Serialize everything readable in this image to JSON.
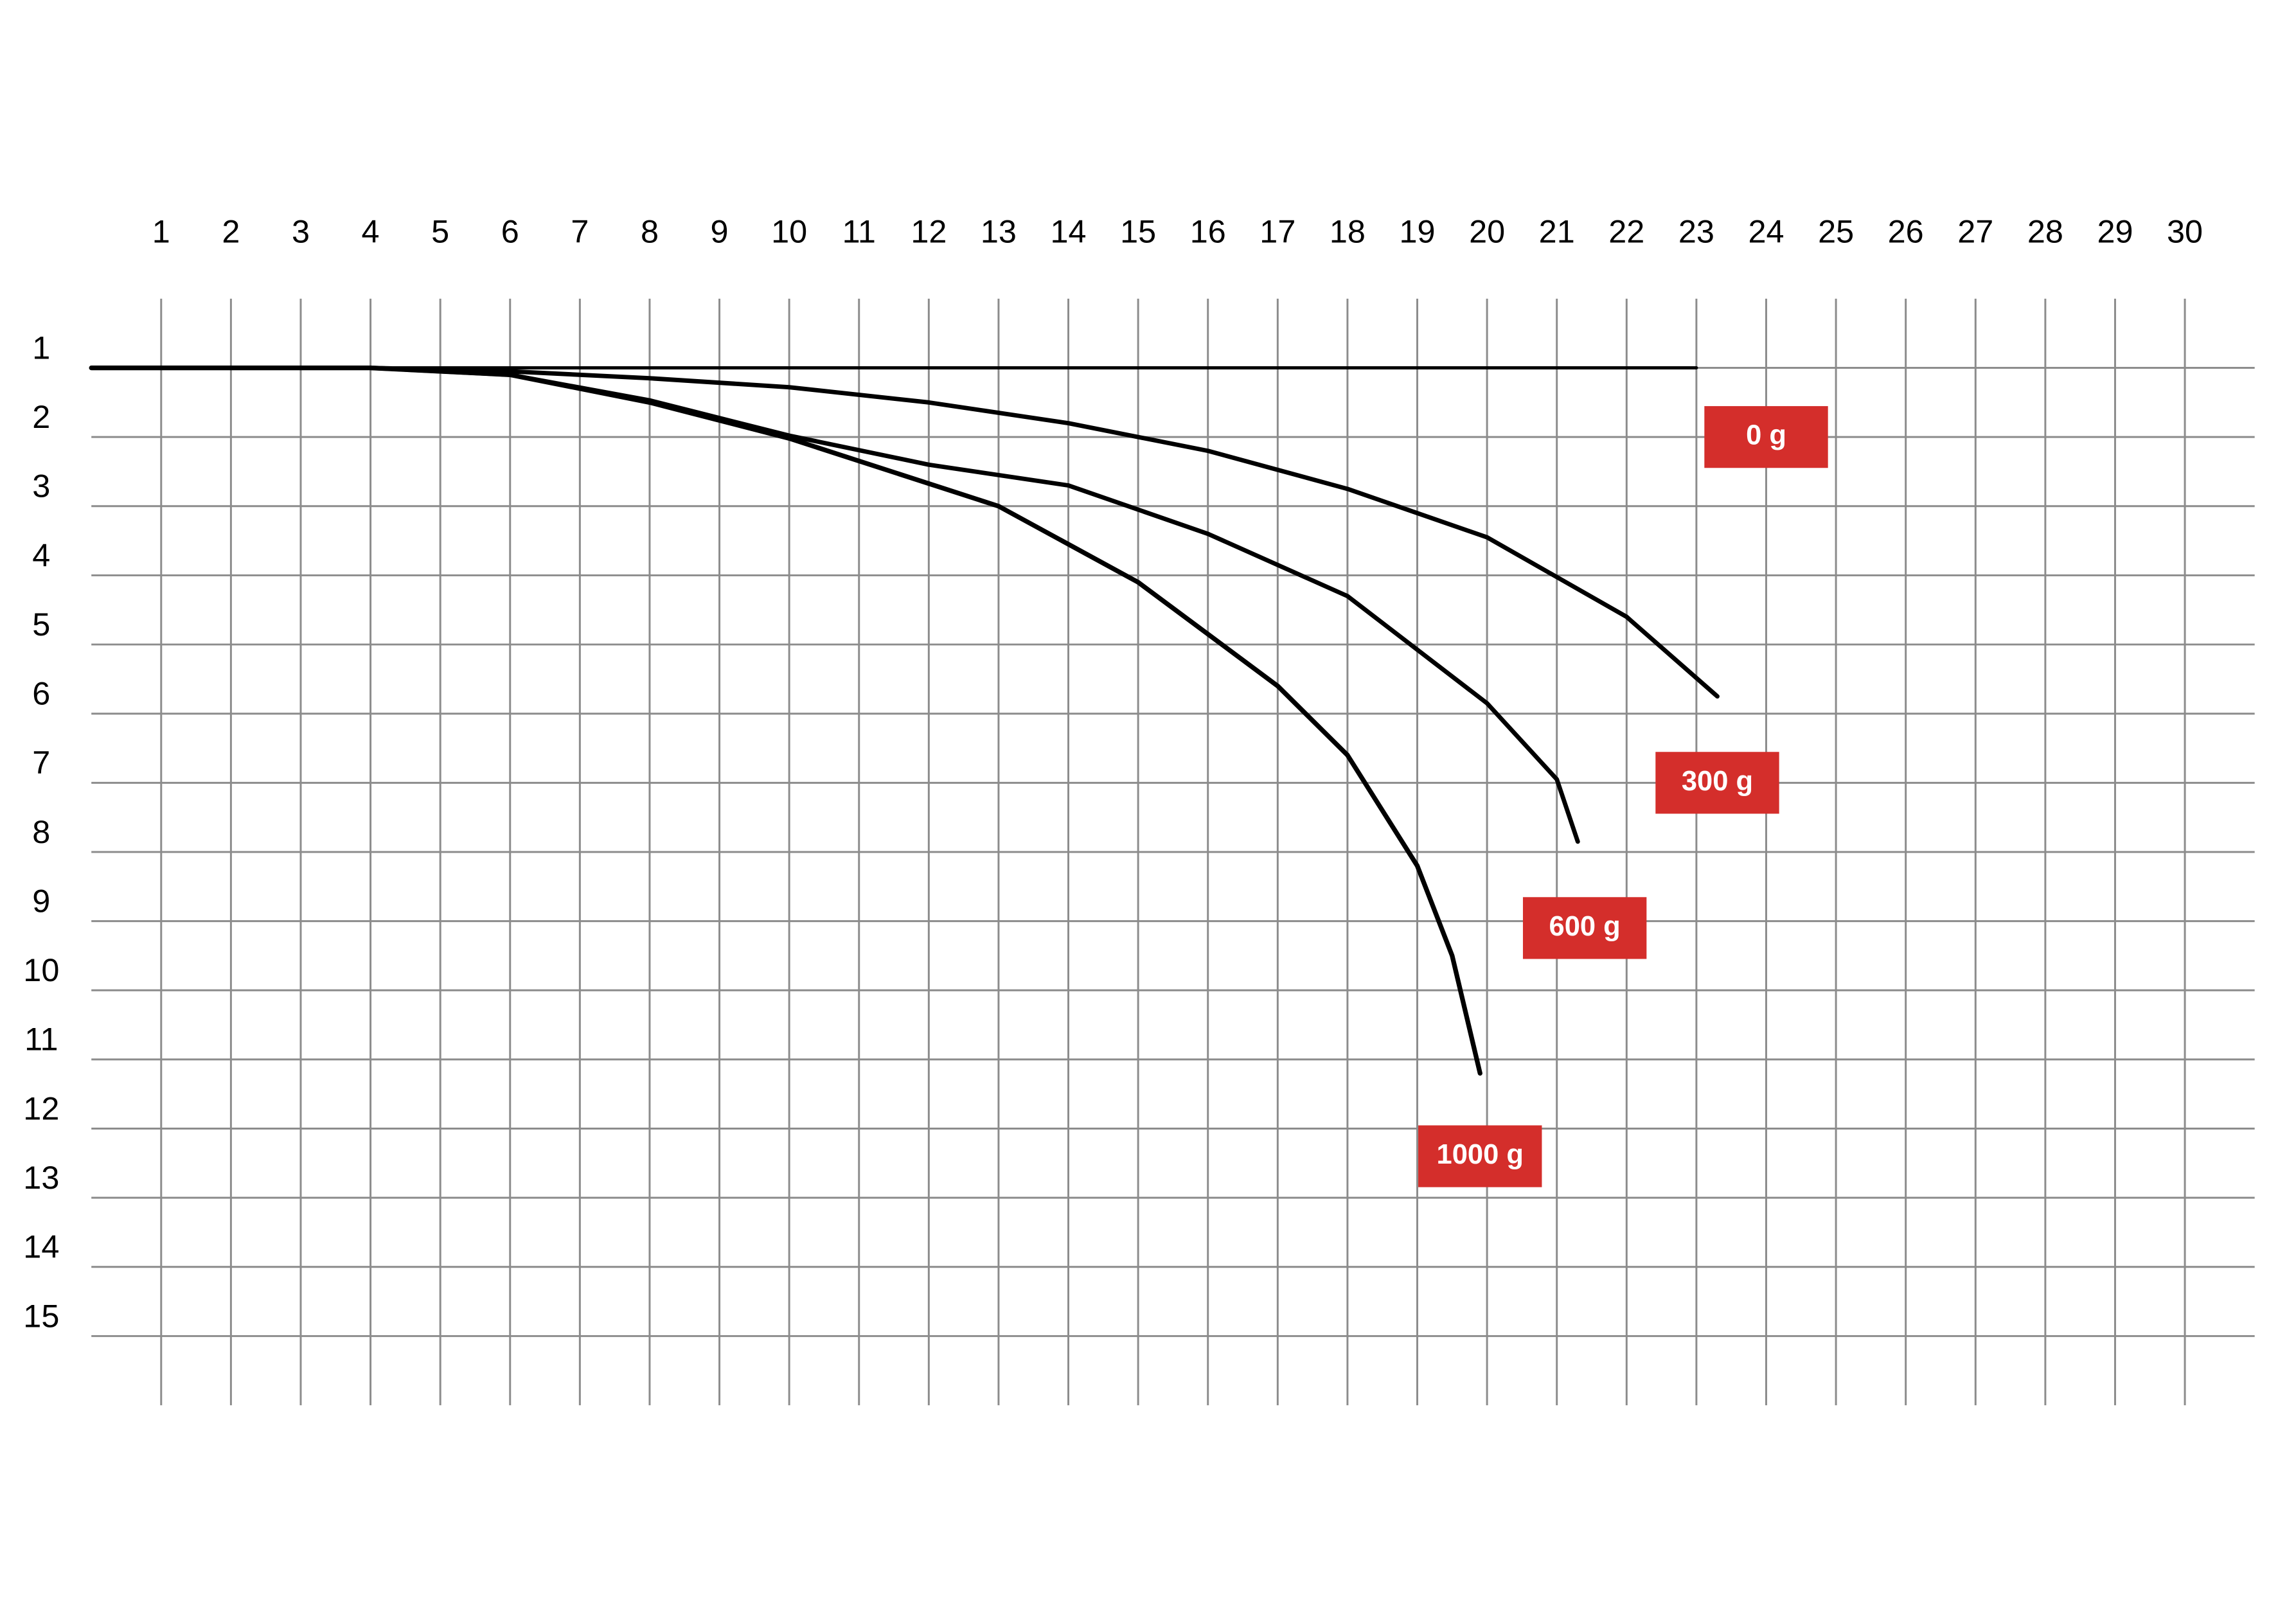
{
  "chart_data": {
    "type": "line",
    "xlim": [
      0,
      31
    ],
    "ylim": [
      0,
      16
    ],
    "y_inverted": true,
    "grid": true,
    "xticks": [
      1,
      2,
      3,
      4,
      5,
      6,
      7,
      8,
      9,
      10,
      11,
      12,
      13,
      14,
      15,
      16,
      17,
      18,
      19,
      20,
      21,
      22,
      23,
      24,
      25,
      26,
      27,
      28,
      29,
      30
    ],
    "yticks": [
      1,
      2,
      3,
      4,
      5,
      6,
      7,
      8,
      9,
      10,
      11,
      12,
      13,
      14,
      15
    ],
    "label_color": "#d42e2b",
    "series": [
      {
        "name": "0 g",
        "color": "#000000",
        "x": [
          0,
          4,
          8,
          12,
          16,
          20,
          23
        ],
        "values": [
          1,
          1,
          1,
          1,
          1,
          1,
          1
        ]
      },
      {
        "name": "300 g",
        "color": "#000000",
        "x": [
          0,
          4,
          6,
          8,
          10,
          12,
          14,
          16,
          18,
          20,
          22,
          23.3
        ],
        "values": [
          1,
          1,
          1.05,
          1.15,
          1.28,
          1.5,
          1.8,
          2.2,
          2.75,
          3.45,
          4.6,
          5.75
        ]
      },
      {
        "name": "600 g",
        "color": "#000000",
        "x": [
          0,
          4,
          6,
          8,
          10,
          12,
          14,
          16,
          18,
          20,
          21,
          21.3
        ],
        "values": [
          1,
          1,
          1.1,
          1.47,
          1.98,
          2.4,
          2.7,
          3.4,
          4.3,
          5.85,
          6.95,
          7.85
        ]
      },
      {
        "name": "1000 g",
        "color": "#000000",
        "x": [
          0,
          4,
          6,
          8,
          10,
          13,
          15,
          17,
          18,
          19,
          19.5,
          19.9
        ],
        "values": [
          1,
          1,
          1.1,
          1.5,
          2.02,
          3.0,
          4.1,
          5.6,
          6.6,
          8.2,
          9.5,
          11.2
        ]
      }
    ]
  }
}
